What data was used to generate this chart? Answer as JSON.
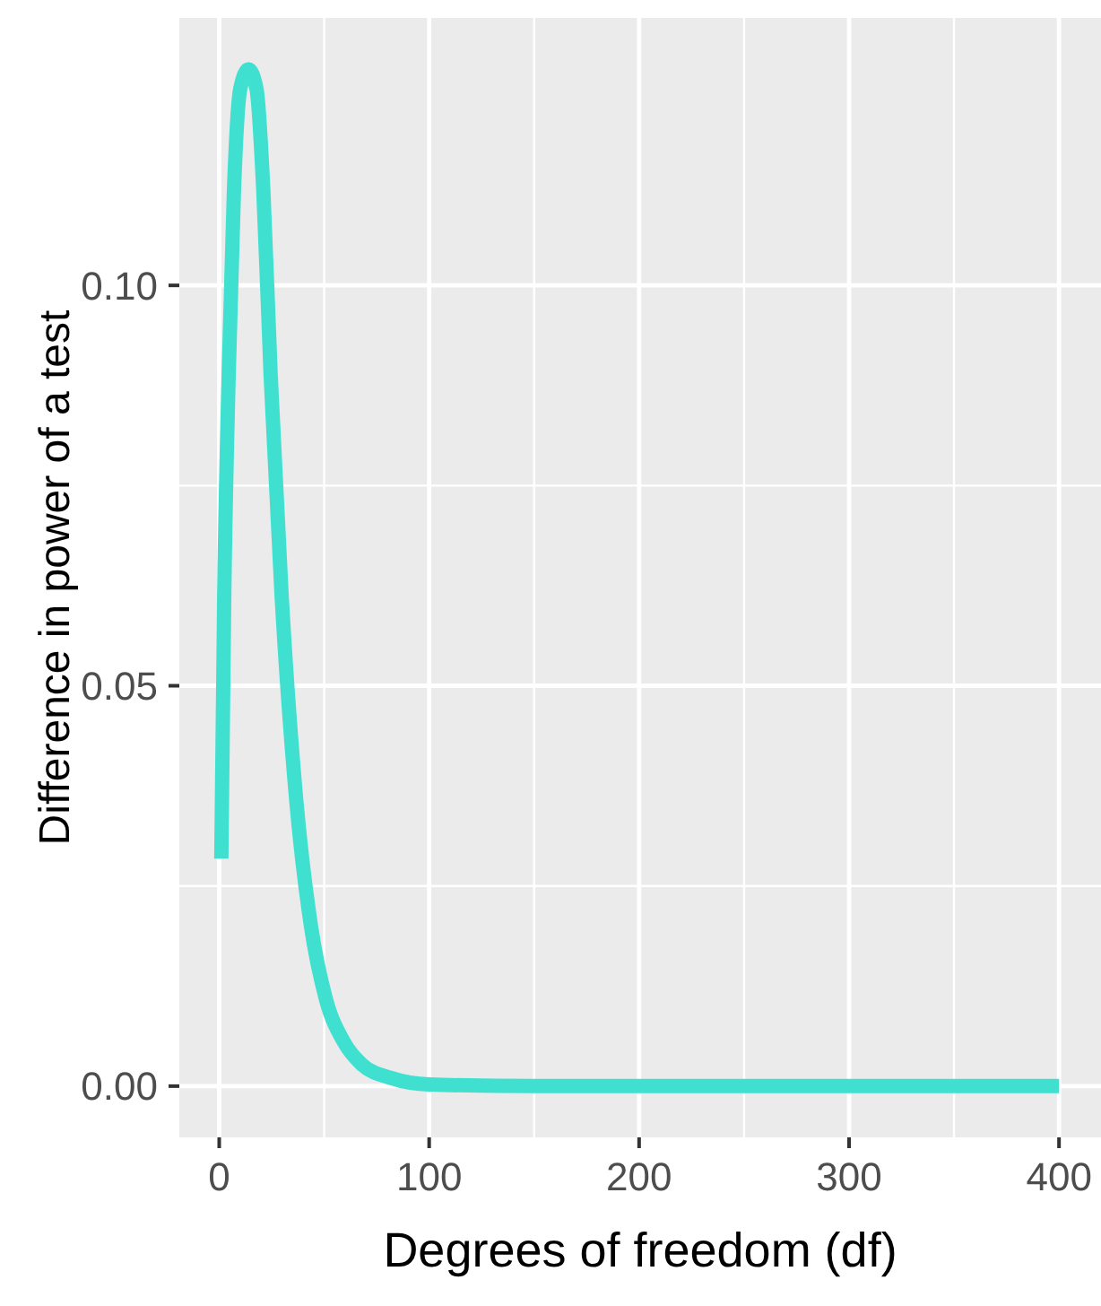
{
  "chart_data": {
    "type": "line",
    "xlabel": "Degrees of freedom (df)",
    "ylabel": "Difference in power of a test",
    "series": [
      {
        "color": "#40e0d0",
        "x": [
          1,
          2.4,
          4.5,
          7,
          10,
          14,
          17.8,
          21,
          24.5,
          29.7,
          36.7,
          43.7,
          50.7,
          59.4,
          68,
          82,
          100,
          150,
          200,
          300,
          400
        ],
        "values": [
          0.0284,
          0.0614,
          0.0888,
          0.1117,
          0.1245,
          0.127,
          0.1245,
          0.112,
          0.0888,
          0.0614,
          0.0357,
          0.02,
          0.011,
          0.0055,
          0.0027,
          0.001,
          0.0002,
          0,
          0,
          0,
          0
        ]
      }
    ],
    "xlim": [
      -19,
      420
    ],
    "xticks": [
      0,
      100,
      200,
      300,
      400
    ],
    "ylim": [
      -0.0064,
      0.1334
    ],
    "yticks": [
      {
        "value": 0,
        "label": "0.00"
      },
      {
        "value": 0.05,
        "label": "0.05"
      },
      {
        "value": 0.1,
        "label": "0.10"
      }
    ],
    "grid": true,
    "marker": "none",
    "line_style": "solid"
  }
}
